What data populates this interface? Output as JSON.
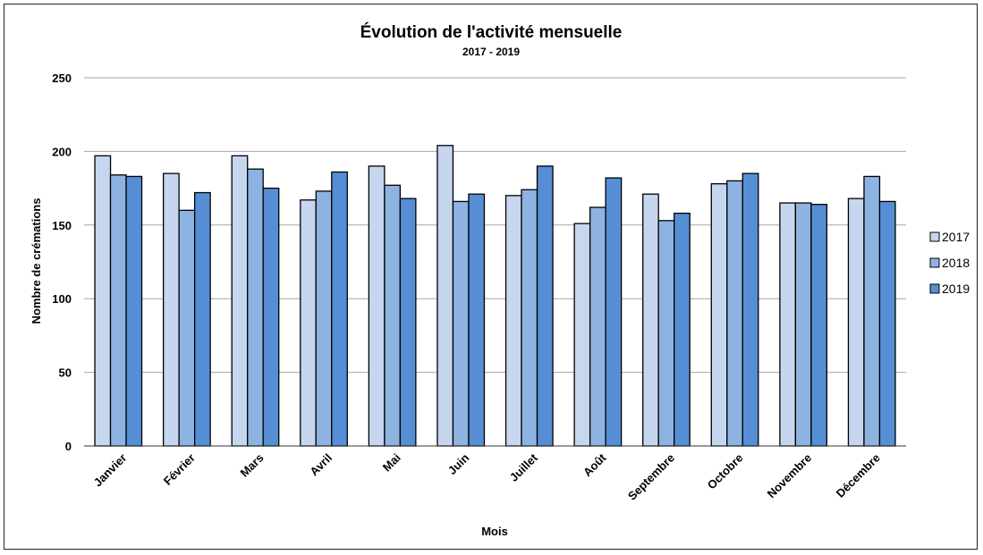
{
  "chart_data": {
    "type": "bar",
    "title": "Évolution de l'activité mensuelle",
    "subtitle": "2017 - 2019",
    "xlabel": "Mois",
    "ylabel": "Nombre de crémations",
    "ylim": [
      0,
      250
    ],
    "yticks": [
      0,
      50,
      100,
      150,
      200,
      250
    ],
    "grid": true,
    "legend_position": "right",
    "categories": [
      "Janvier",
      "Février",
      "Mars",
      "Avril",
      "Mai",
      "Juin",
      "Juillet",
      "Août",
      "Septembre",
      "Octobre",
      "Novembre",
      "Décembre"
    ],
    "series": [
      {
        "name": "2017",
        "color": "#c6d6ef",
        "values": [
          197,
          185,
          197,
          167,
          190,
          204,
          170,
          151,
          171,
          178,
          165,
          168
        ]
      },
      {
        "name": "2018",
        "color": "#8db3e2",
        "values": [
          184,
          160,
          188,
          173,
          177,
          166,
          174,
          162,
          153,
          180,
          165,
          183
        ]
      },
      {
        "name": "2019",
        "color": "#558ed5",
        "values": [
          183,
          172,
          175,
          186,
          168,
          171,
          190,
          182,
          158,
          185,
          164,
          166
        ]
      }
    ]
  }
}
